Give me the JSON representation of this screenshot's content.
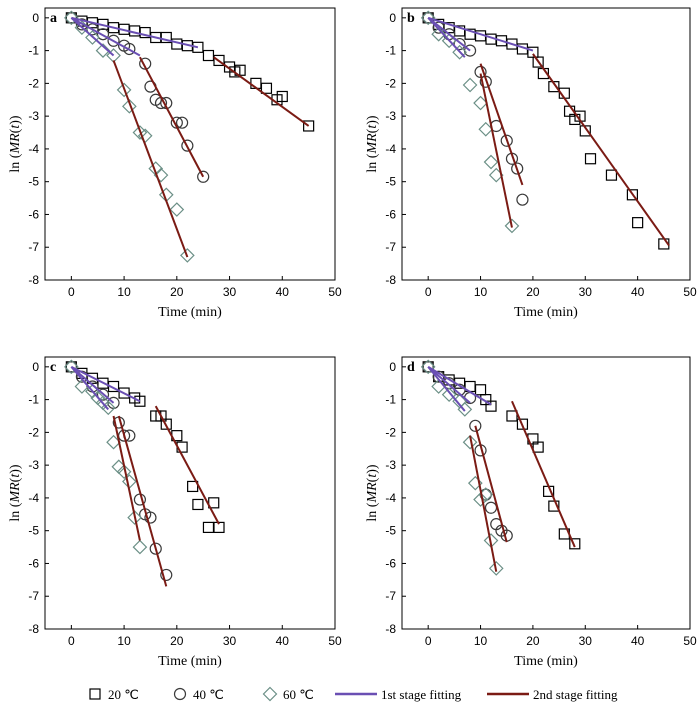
{
  "colors": {
    "square": "#000000",
    "circle": "#3a3a3a",
    "diamond": "#6b8f86",
    "fit1": "#6a4fb3",
    "fit2": "#7b1b14"
  },
  "legend": {
    "items": [
      {
        "marker": "square",
        "label": "20 ℃"
      },
      {
        "marker": "circle",
        "label": "40 ℃"
      },
      {
        "marker": "diamond",
        "label": "60 ℃"
      },
      {
        "marker": "line1",
        "label": "1st stage fitting"
      },
      {
        "marker": "line2",
        "label": "2nd stage fitting"
      }
    ]
  },
  "chart_data": [
    {
      "panel_label": "a",
      "type": "scatter",
      "xlabel": "Time (min)",
      "ylabel": "ln (MR(t))",
      "xlim": [
        -5,
        50
      ],
      "ylim": [
        -8,
        0.3
      ],
      "xticks": [
        0,
        10,
        20,
        30,
        40,
        50
      ],
      "yticks": [
        0,
        -1,
        -2,
        -3,
        -4,
        -5,
        -6,
        -7,
        -8
      ],
      "series": [
        {
          "marker": "square",
          "x": [
            0,
            2,
            4,
            6,
            8,
            10,
            12,
            14,
            16,
            18,
            20,
            22,
            24,
            26,
            28,
            30,
            31,
            32,
            35,
            37,
            39,
            40,
            45
          ],
          "y": [
            0,
            -0.1,
            -0.15,
            -0.2,
            -0.3,
            -0.35,
            -0.4,
            -0.45,
            -0.6,
            -0.6,
            -0.8,
            -0.85,
            -0.9,
            -1.15,
            -1.3,
            -1.5,
            -1.65,
            -1.6,
            -2.0,
            -2.15,
            -2.5,
            -2.4,
            -3.3
          ]
        },
        {
          "marker": "circle",
          "x": [
            0,
            2,
            4,
            6,
            8,
            10,
            11,
            14,
            15,
            16,
            17,
            18,
            20,
            21,
            22,
            25
          ],
          "y": [
            0,
            -0.2,
            -0.35,
            -0.5,
            -0.7,
            -0.85,
            -0.95,
            -1.4,
            -2.1,
            -2.5,
            -2.6,
            -2.6,
            -3.2,
            -3.2,
            -3.9,
            -4.85
          ]
        },
        {
          "marker": "diamond",
          "x": [
            0,
            2,
            4,
            6,
            8,
            10,
            11,
            13,
            14,
            16,
            17,
            18,
            20,
            22
          ],
          "y": [
            0,
            -0.3,
            -0.6,
            -1.0,
            -1.15,
            -2.2,
            -2.7,
            -3.5,
            -3.6,
            -4.6,
            -4.8,
            -5.4,
            -5.85,
            -7.25
          ]
        }
      ],
      "fits": [
        {
          "stage": 1,
          "x": [
            0,
            24
          ],
          "y": [
            0,
            -0.9
          ]
        },
        {
          "stage": 1,
          "x": [
            0,
            13
          ],
          "y": [
            0,
            -1.15
          ]
        },
        {
          "stage": 1,
          "x": [
            0,
            8
          ],
          "y": [
            0,
            -1.15
          ]
        },
        {
          "stage": 2,
          "x": [
            27,
            45
          ],
          "y": [
            -1.2,
            -3.3
          ]
        },
        {
          "stage": 2,
          "x": [
            13,
            25
          ],
          "y": [
            -1.2,
            -4.85
          ]
        },
        {
          "stage": 2,
          "x": [
            8,
            22
          ],
          "y": [
            -1.3,
            -7.3
          ]
        }
      ]
    },
    {
      "panel_label": "b",
      "type": "scatter",
      "xlabel": "Time (min)",
      "ylabel": "ln (MR(t))",
      "xlim": [
        -5,
        50
      ],
      "ylim": [
        -8,
        0.3
      ],
      "xticks": [
        0,
        10,
        20,
        30,
        40,
        50
      ],
      "yticks": [
        0,
        -1,
        -2,
        -3,
        -4,
        -5,
        -6,
        -7,
        -8
      ],
      "series": [
        {
          "marker": "square",
          "x": [
            0,
            2,
            4,
            6,
            8,
            10,
            12,
            14,
            16,
            18,
            20,
            21,
            22,
            24,
            26,
            27,
            28,
            29,
            30,
            31,
            35,
            39,
            40,
            45
          ],
          "y": [
            0,
            -0.2,
            -0.3,
            -0.4,
            -0.5,
            -0.55,
            -0.65,
            -0.7,
            -0.8,
            -0.95,
            -1.05,
            -1.35,
            -1.7,
            -2.1,
            -2.3,
            -2.85,
            -3.1,
            -3.0,
            -3.45,
            -4.3,
            -4.8,
            -5.4,
            -6.25,
            -6.9
          ]
        },
        {
          "marker": "circle",
          "x": [
            0,
            2,
            4,
            6,
            8,
            10,
            11,
            13,
            15,
            16,
            17,
            18
          ],
          "y": [
            0,
            -0.3,
            -0.5,
            -0.8,
            -1.0,
            -1.65,
            -1.95,
            -3.3,
            -3.75,
            -4.3,
            -4.6,
            -5.55
          ]
        },
        {
          "marker": "diamond",
          "x": [
            0,
            2,
            4,
            6,
            8,
            10,
            11,
            12,
            13,
            16
          ],
          "y": [
            0,
            -0.5,
            -0.7,
            -1.05,
            -2.05,
            -2.6,
            -3.4,
            -4.4,
            -4.8,
            -6.35
          ]
        }
      ],
      "fits": [
        {
          "stage": 1,
          "x": [
            0,
            20
          ],
          "y": [
            0,
            -1.0
          ]
        },
        {
          "stage": 1,
          "x": [
            0,
            8
          ],
          "y": [
            0,
            -1.0
          ]
        },
        {
          "stage": 1,
          "x": [
            0,
            7
          ],
          "y": [
            0,
            -1.2
          ]
        },
        {
          "stage": 2,
          "x": [
            20,
            46
          ],
          "y": [
            -1.1,
            -6.95
          ]
        },
        {
          "stage": 2,
          "x": [
            10,
            18
          ],
          "y": [
            -1.4,
            -5.1
          ]
        },
        {
          "stage": 2,
          "x": [
            10,
            16
          ],
          "y": [
            -1.7,
            -6.4
          ]
        }
      ]
    },
    {
      "panel_label": "c",
      "type": "scatter",
      "xlabel": "Time (min)",
      "ylabel": "ln (MR(t))",
      "xlim": [
        -5,
        50
      ],
      "ylim": [
        -8,
        0.3
      ],
      "xticks": [
        0,
        10,
        20,
        30,
        40,
        50
      ],
      "yticks": [
        0,
        -1,
        -2,
        -3,
        -4,
        -5,
        -6,
        -7,
        -8
      ],
      "series": [
        {
          "marker": "square",
          "x": [
            0,
            2,
            4,
            6,
            8,
            10,
            12,
            13,
            16,
            17,
            18,
            20,
            21,
            23,
            24,
            26,
            27,
            28
          ],
          "y": [
            0,
            -0.2,
            -0.35,
            -0.5,
            -0.6,
            -0.8,
            -0.95,
            -1.05,
            -1.5,
            -1.5,
            -1.75,
            -2.1,
            -2.45,
            -3.65,
            -4.2,
            -4.9,
            -4.15,
            -4.9
          ]
        },
        {
          "marker": "circle",
          "x": [
            0,
            2,
            4,
            6,
            8,
            9,
            10,
            11,
            13,
            14,
            15,
            16,
            18
          ],
          "y": [
            0,
            -0.3,
            -0.6,
            -0.85,
            -1.1,
            -1.7,
            -2.1,
            -2.1,
            -4.05,
            -4.5,
            -4.6,
            -5.55,
            -6.35
          ]
        },
        {
          "marker": "diamond",
          "x": [
            0,
            2,
            4,
            5,
            6,
            7,
            8,
            9,
            10,
            11,
            12,
            13
          ],
          "y": [
            0,
            -0.6,
            -0.75,
            -0.95,
            -1.1,
            -1.25,
            -2.3,
            -3.05,
            -3.2,
            -3.5,
            -4.6,
            -5.5
          ]
        }
      ],
      "fits": [
        {
          "stage": 1,
          "x": [
            0,
            13
          ],
          "y": [
            0,
            -1.05
          ]
        },
        {
          "stage": 1,
          "x": [
            0,
            8
          ],
          "y": [
            0,
            -1.1
          ]
        },
        {
          "stage": 1,
          "x": [
            0,
            7
          ],
          "y": [
            0,
            -1.3
          ]
        },
        {
          "stage": 2,
          "x": [
            16,
            28
          ],
          "y": [
            -1.2,
            -4.8
          ]
        },
        {
          "stage": 2,
          "x": [
            9,
            18
          ],
          "y": [
            -1.5,
            -6.7
          ]
        },
        {
          "stage": 2,
          "x": [
            8,
            13
          ],
          "y": [
            -1.5,
            -5.3
          ]
        }
      ]
    },
    {
      "panel_label": "d",
      "type": "scatter",
      "xlabel": "Time (min)",
      "ylabel": "ln (MR(t))",
      "xlim": [
        -5,
        50
      ],
      "ylim": [
        -8,
        0.3
      ],
      "xticks": [
        0,
        10,
        20,
        30,
        40,
        50
      ],
      "yticks": [
        0,
        -1,
        -2,
        -3,
        -4,
        -5,
        -6,
        -7,
        -8
      ],
      "series": [
        {
          "marker": "square",
          "x": [
            0,
            2,
            4,
            6,
            8,
            10,
            11,
            12,
            16,
            18,
            20,
            21,
            23,
            24,
            26,
            28
          ],
          "y": [
            0,
            -0.3,
            -0.4,
            -0.5,
            -0.6,
            -0.7,
            -1.0,
            -1.2,
            -1.5,
            -1.75,
            -2.2,
            -2.45,
            -3.8,
            -4.25,
            -5.1,
            -5.4
          ]
        },
        {
          "marker": "circle",
          "x": [
            0,
            2,
            4,
            6,
            8,
            9,
            10,
            11,
            12,
            13,
            14,
            15
          ],
          "y": [
            0,
            -0.3,
            -0.5,
            -0.7,
            -0.95,
            -1.8,
            -2.55,
            -3.9,
            -4.3,
            -4.8,
            -5.0,
            -5.15
          ]
        },
        {
          "marker": "diamond",
          "x": [
            0,
            2,
            4,
            6,
            7,
            8,
            9,
            10,
            11,
            12,
            13
          ],
          "y": [
            0,
            -0.6,
            -0.85,
            -1.05,
            -1.3,
            -2.3,
            -3.55,
            -4.05,
            -3.9,
            -5.3,
            -6.15
          ]
        }
      ],
      "fits": [
        {
          "stage": 1,
          "x": [
            0,
            12
          ],
          "y": [
            0,
            -1.15
          ]
        },
        {
          "stage": 1,
          "x": [
            0,
            8
          ],
          "y": [
            0,
            -1.1
          ]
        },
        {
          "stage": 1,
          "x": [
            0,
            7
          ],
          "y": [
            0,
            -1.35
          ]
        },
        {
          "stage": 2,
          "x": [
            16,
            28
          ],
          "y": [
            -1.05,
            -5.5
          ]
        },
        {
          "stage": 2,
          "x": [
            9,
            15
          ],
          "y": [
            -1.8,
            -5.35
          ]
        },
        {
          "stage": 2,
          "x": [
            8,
            13
          ],
          "y": [
            -2.1,
            -6.25
          ]
        }
      ]
    }
  ]
}
